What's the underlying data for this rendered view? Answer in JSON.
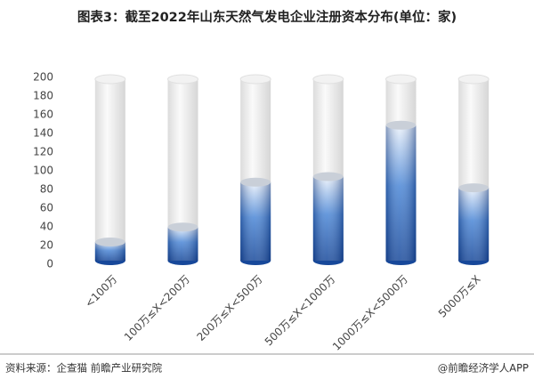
{
  "chart_data": {
    "type": "cylinder-bar",
    "title": "图表3：截至2022年山东天然气发电企业注册资本分布(单位：家)",
    "categories": [
      "<100万",
      "100万≤X<200万",
      "200万≤X<500万",
      "500万≤X<1000万",
      "1000万≤X<5000万",
      "5000万≤X"
    ],
    "values": [
      20,
      36,
      84,
      90,
      145,
      78
    ],
    "color": "#1f55a8",
    "ylim": [
      0,
      200
    ],
    "yticks": [
      0,
      20,
      40,
      60,
      80,
      100,
      120,
      140,
      160,
      180,
      200
    ],
    "grid": false,
    "source": "资料来源：企查猫 前瞻产业研究院",
    "credit": "@前瞻经济学人APP"
  }
}
